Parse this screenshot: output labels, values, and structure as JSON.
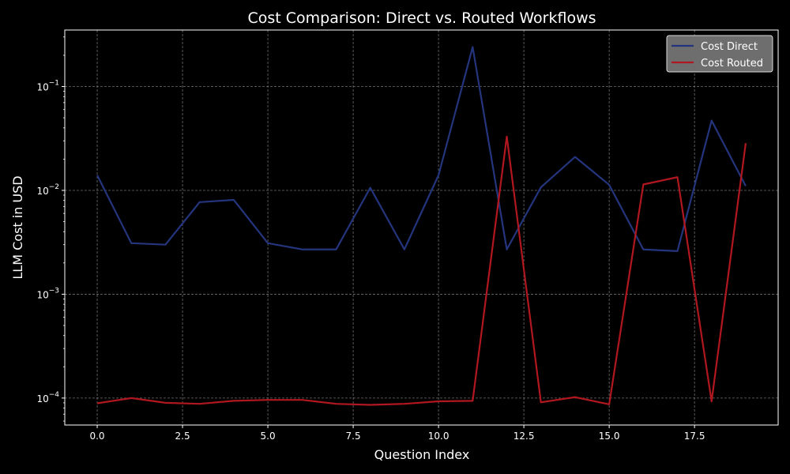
{
  "chart_data": {
    "type": "line",
    "title": "Cost Comparison: Direct vs. Routed Workflows",
    "xlabel": "Question Index",
    "ylabel": "LLM Cost in USD",
    "yscale": "log",
    "xlim": [
      -0.95,
      19.95
    ],
    "ylim": [
      5.5e-05,
      0.35
    ],
    "x_ticks": [
      0,
      2.5,
      5,
      7.5,
      10,
      12.5,
      15,
      17.5
    ],
    "x_tick_labels": [
      "0.0",
      "2.5",
      "5.0",
      "7.5",
      "10.0",
      "12.5",
      "15.0",
      "17.5"
    ],
    "y_ticks": [
      0.0001,
      0.001,
      0.01,
      0.1
    ],
    "y_tick_labels": [
      {
        "base": "10",
        "exp": "−4"
      },
      {
        "base": "10",
        "exp": "−3"
      },
      {
        "base": "10",
        "exp": "−2"
      },
      {
        "base": "10",
        "exp": "−1"
      }
    ],
    "grid": true,
    "legend_position": "top-right",
    "x": [
      0,
      1,
      2,
      3,
      4,
      5,
      6,
      7,
      8,
      9,
      10,
      11,
      12,
      13,
      14,
      15,
      16,
      17,
      18,
      19
    ],
    "series": [
      {
        "name": "Cost Direct",
        "color": "#24357d",
        "values": [
          0.014,
          0.0031,
          0.003,
          0.0077,
          0.0081,
          0.0031,
          0.0027,
          0.0027,
          0.0106,
          0.0027,
          0.014,
          0.24,
          0.0027,
          0.0107,
          0.021,
          0.0113,
          0.0027,
          0.0026,
          0.047,
          0.011
        ]
      },
      {
        "name": "Cost Routed",
        "color": "#b0171f",
        "values": [
          8.9e-05,
          0.0001,
          9e-05,
          8.8e-05,
          9.4e-05,
          9.6e-05,
          9.6e-05,
          8.8e-05,
          8.6e-05,
          8.8e-05,
          9.3e-05,
          9.4e-05,
          0.033,
          9.1e-05,
          0.000102,
          8.7e-05,
          0.0114,
          0.0134,
          9.3e-05,
          0.0285
        ]
      }
    ]
  }
}
